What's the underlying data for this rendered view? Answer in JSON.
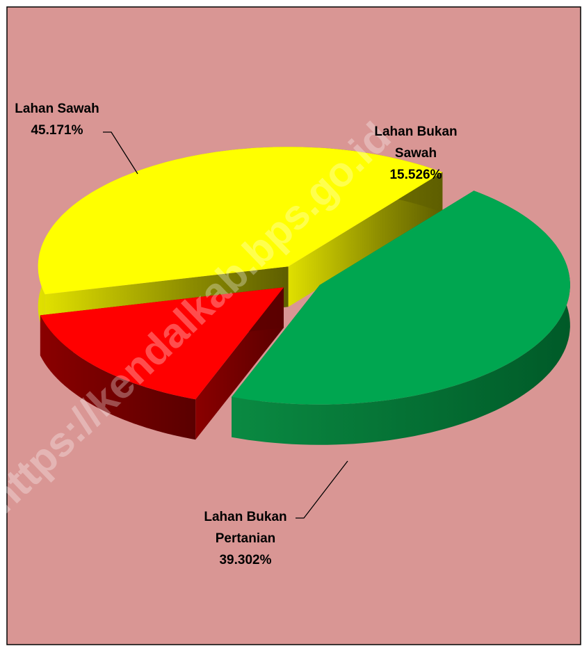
{
  "chart_data": {
    "type": "pie",
    "categories": [
      "Lahan Sawah",
      "Lahan Bukan Sawah",
      "Lahan Bukan Pertanian"
    ],
    "values": [
      45.171,
      15.526,
      39.302
    ],
    "value_labels": [
      "45.171%",
      "15.526%",
      "39.302%"
    ],
    "colors": [
      "#00a650",
      "#ff0000",
      "#ffff00"
    ],
    "watermark": "https://kendalkab.bps.go.id"
  }
}
